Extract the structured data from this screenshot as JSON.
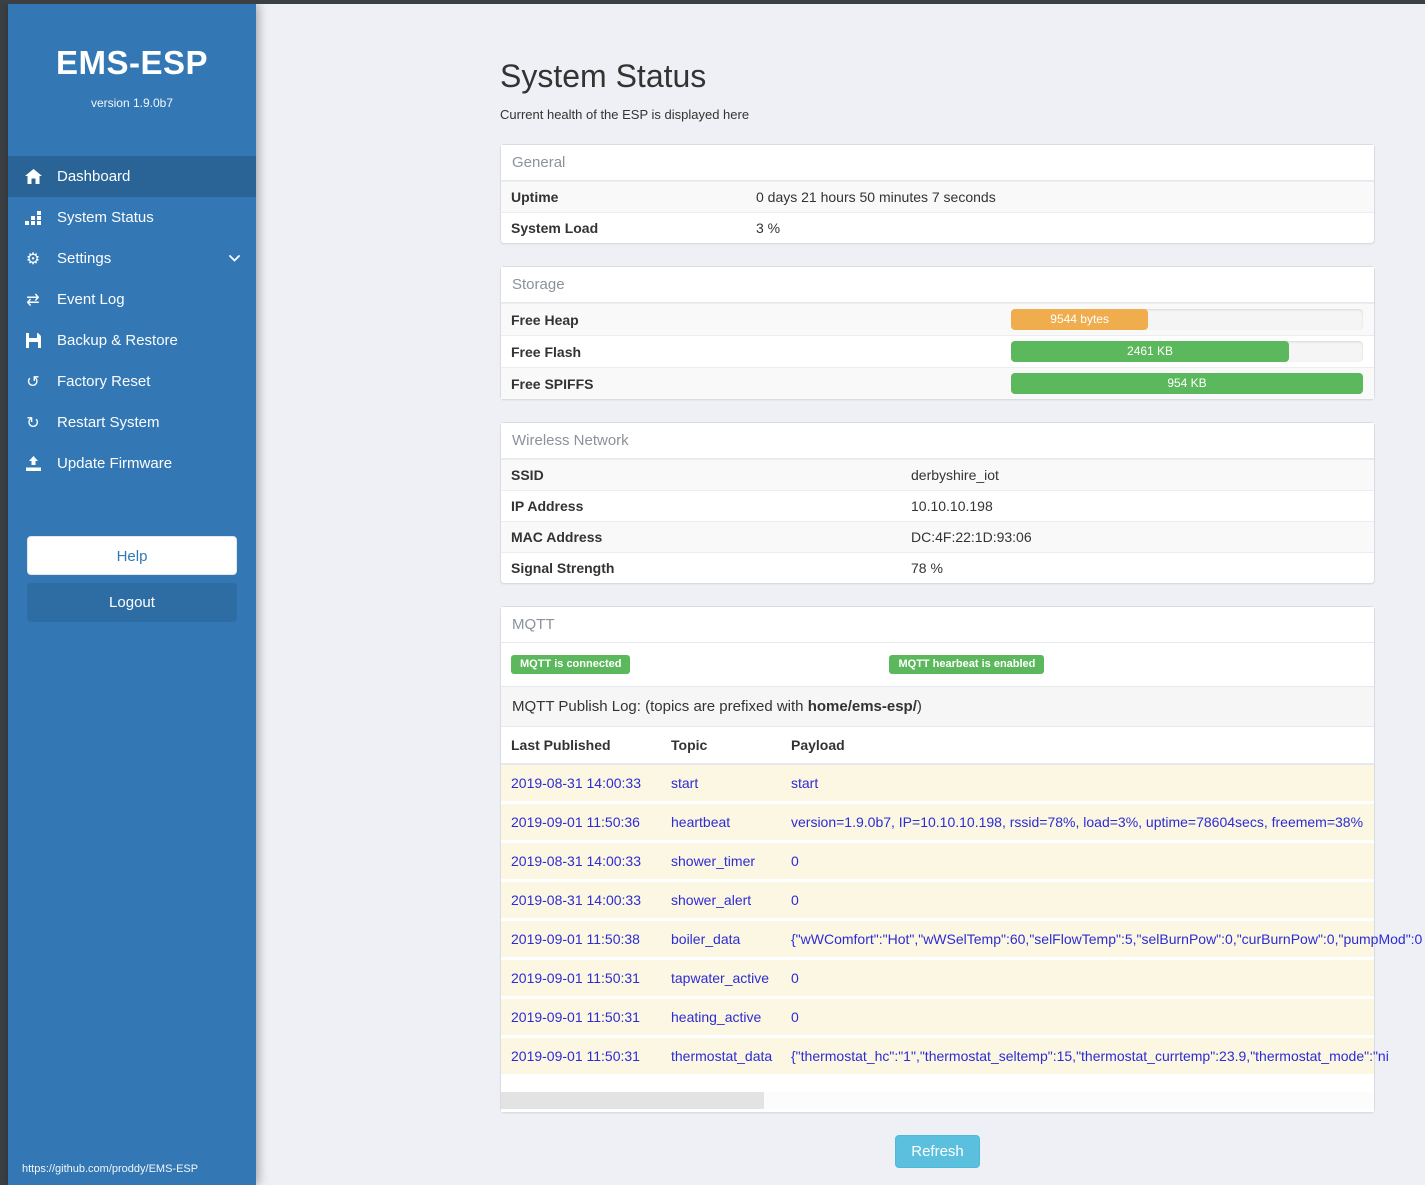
{
  "sidebar": {
    "title": "EMS-ESP",
    "version": "version 1.9.0b7",
    "nav": [
      {
        "label": "Dashboard"
      },
      {
        "label": "System Status"
      },
      {
        "label": "Settings"
      },
      {
        "label": "Event Log"
      },
      {
        "label": "Backup & Restore"
      },
      {
        "label": "Factory Reset"
      },
      {
        "label": "Restart System"
      },
      {
        "label": "Update Firmware"
      }
    ],
    "help_label": "Help",
    "logout_label": "Logout",
    "footer_link": "https://github.com/proddy/EMS-ESP"
  },
  "page": {
    "title": "System Status",
    "subtitle": "Current health of the ESP is displayed here",
    "refresh_label": "Refresh"
  },
  "colors": {
    "sidebar_blue": "#3378b5",
    "active_blue": "#2a6496",
    "badge_green": "#5cb85c",
    "heap_orange": "#f0ad4e",
    "refresh_blue": "#5bc0de",
    "row_cream": "#fcf7e2",
    "log_text_blue": "#2c2cd4"
  },
  "panels": {
    "general": {
      "title": "General",
      "rows": [
        {
          "label": "Uptime",
          "value": "0 days 21 hours 50 minutes 7 seconds"
        },
        {
          "label": "System Load",
          "value": "3 %"
        }
      ]
    },
    "storage": {
      "title": "Storage",
      "rows": [
        {
          "label": "Free Heap",
          "bar_label": "9544 bytes",
          "percent": 39,
          "color": "#f0ad4e"
        },
        {
          "label": "Free Flash",
          "bar_label": "2461 KB",
          "percent": 79,
          "color": "#5cb85c"
        },
        {
          "label": "Free SPIFFS",
          "bar_label": "954 KB",
          "percent": 100,
          "color": "#5cb85c"
        }
      ]
    },
    "wireless": {
      "title": "Wireless Network",
      "rows": [
        {
          "label": "SSID",
          "value": "derbyshire_iot"
        },
        {
          "label": "IP Address",
          "value": "10.10.10.198"
        },
        {
          "label": "MAC Address",
          "value": "DC:4F:22:1D:93:06"
        },
        {
          "label": "Signal Strength",
          "value": "78 %"
        }
      ]
    },
    "mqtt": {
      "title": "MQTT",
      "badges": [
        "MQTT is connected",
        "MQTT hearbeat is enabled"
      ],
      "log_caption_prefix": "MQTT Publish Log: (topics are prefixed with ",
      "log_caption_bold": "home/ems-esp/",
      "log_caption_suffix": ")",
      "table": {
        "headers": [
          "Last Published",
          "Topic",
          "Payload"
        ],
        "rows": [
          {
            "time": "2019-08-31 14:00:33",
            "topic": "start",
            "payload": "start"
          },
          {
            "time": "2019-09-01 11:50:36",
            "topic": "heartbeat",
            "payload": "version=1.9.0b7, IP=10.10.10.198, rssid=78%, load=3%, uptime=78604secs, freemem=38%"
          },
          {
            "time": "2019-08-31 14:00:33",
            "topic": "shower_timer",
            "payload": "0"
          },
          {
            "time": "2019-08-31 14:00:33",
            "topic": "shower_alert",
            "payload": "0"
          },
          {
            "time": "2019-09-01 11:50:38",
            "topic": "boiler_data",
            "payload": "{\"wWComfort\":\"Hot\",\"wWSelTemp\":60,\"selFlowTemp\":5,\"selBurnPow\":0,\"curBurnPow\":0,\"pumpMod\":0"
          },
          {
            "time": "2019-09-01 11:50:31",
            "topic": "tapwater_active",
            "payload": "0"
          },
          {
            "time": "2019-09-01 11:50:31",
            "topic": "heating_active",
            "payload": "0"
          },
          {
            "time": "2019-09-01 11:50:31",
            "topic": "thermostat_data",
            "payload": "{\"thermostat_hc\":\"1\",\"thermostat_seltemp\":15,\"thermostat_currtemp\":23.9,\"thermostat_mode\":\"ni"
          }
        ]
      }
    }
  }
}
